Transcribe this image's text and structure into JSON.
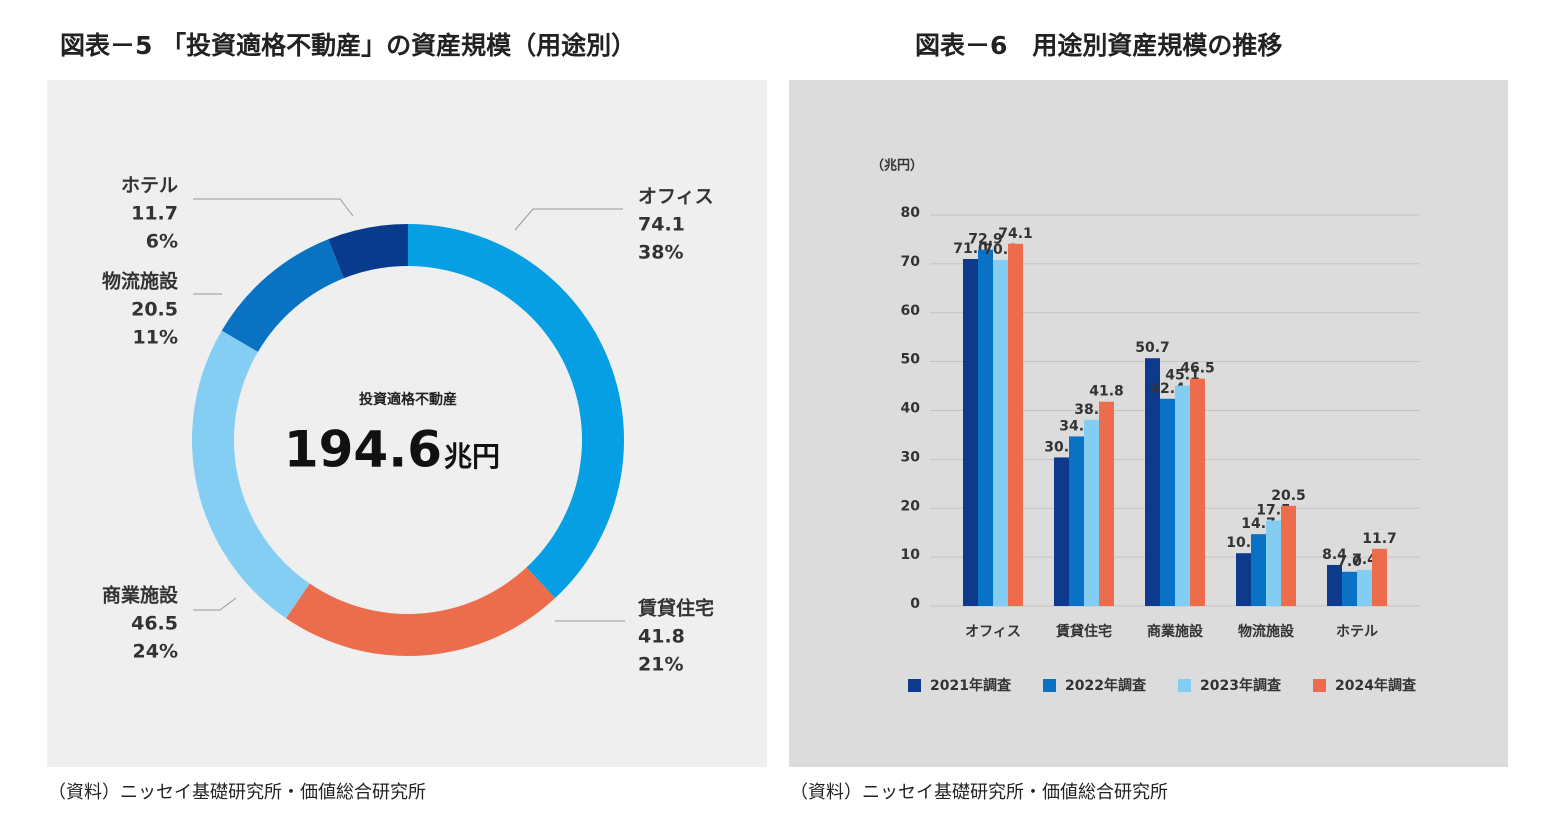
{
  "chart_data": [
    {
      "type": "donut",
      "title": "図表－5 「投資適格不動産」の資産規模（用途別）",
      "center_label": "投資適格不動産",
      "total": 194.6,
      "total_unit": "兆円",
      "categories": [
        "オフィス",
        "賃貸住宅",
        "商業施設",
        "物流施設",
        "ホテル"
      ],
      "values": [
        74.1,
        41.8,
        46.5,
        20.5,
        11.7
      ],
      "share_labels": [
        "38%",
        "21%",
        "24%",
        "11%",
        "6%"
      ],
      "colors": [
        "#069fe4",
        "#ec6d4b",
        "#85cef3",
        "#0a72c2",
        "#093b8c"
      ],
      "source": "（資料）ニッセイ基礎研究所・価値総合研究所"
    },
    {
      "type": "bar",
      "title": "図表－6　用途別資産規模の推移",
      "y_label": "（兆円）",
      "categories": [
        "オフィス",
        "賃貸住宅",
        "商業施設",
        "物流施設",
        "ホテル"
      ],
      "series": [
        {
          "name": "2021年調査",
          "color": "#0d3a8c",
          "values": [
            71,
            30.4,
            50.7,
            10.8,
            8.4
          ],
          "value_labels": [
            "71.0",
            "30.4",
            "50.7",
            "10.8",
            "8.4"
          ]
        },
        {
          "name": "2022年調査",
          "color": "#0a72c4",
          "values": [
            72.9,
            34.7,
            42.4,
            14.7,
            7
          ],
          "value_labels": [
            "72.9",
            "34.7",
            "42.4",
            "14.7",
            "7.0"
          ]
        },
        {
          "name": "2023年調査",
          "color": "#84cdf2",
          "values": [
            70.8,
            38.1,
            45.1,
            17.5,
            7.4
          ],
          "value_labels": [
            "70.8",
            "38.1",
            "45.1",
            "17.5",
            "7.4"
          ]
        },
        {
          "name": "2024年調査",
          "color": "#ec6c4b",
          "values": [
            74.1,
            41.8,
            46.5,
            20.5,
            11.7
          ],
          "value_labels": [
            "74.1",
            "41.8",
            "46.5",
            "20.5",
            "11.7"
          ]
        }
      ],
      "ylim": [
        0,
        80
      ],
      "yticks": [
        0,
        10,
        20,
        30,
        40,
        50,
        60,
        70,
        80
      ],
      "grid": true,
      "legend": "bottom",
      "source": "（資料）ニッセイ基礎研究所・価値総合研究所"
    }
  ]
}
